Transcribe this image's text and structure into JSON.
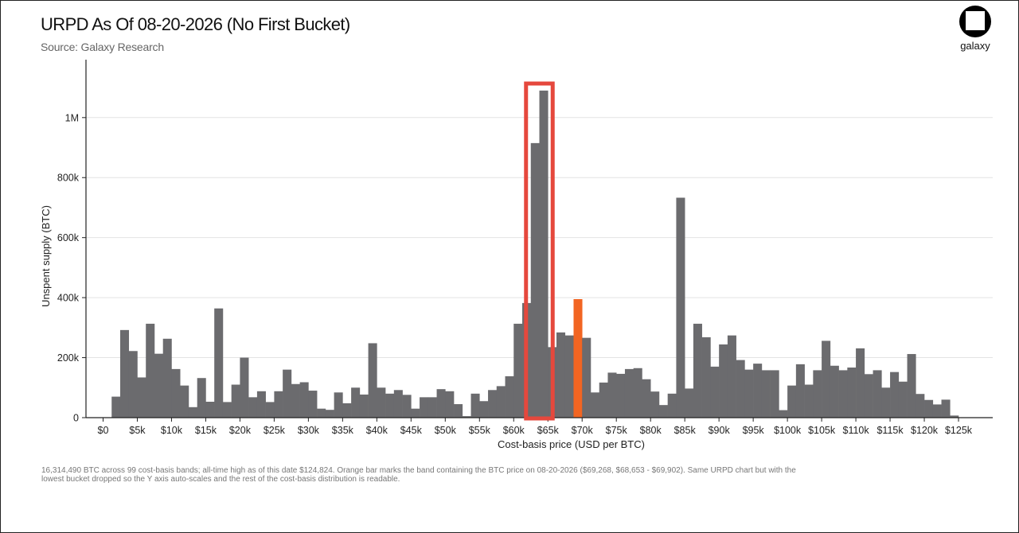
{
  "header": {
    "title": "URPD As Of 08-20-2026 (No First Bucket)",
    "subtitle": "Source: Galaxy Research"
  },
  "logo": {
    "text": "galaxy"
  },
  "footnote": "16,314,490 BTC across 99 cost-basis bands; all-time high as of this date $124,824. Orange bar marks the band containing the BTC price on 08-20-2026 ($69,268, $68,653 - $69,902). Same URPD chart but with the lowest bucket dropped so the Y axis auto-scales and the rest of the cost-basis distribution is readable.",
  "colors": {
    "bar": "#6b6b6e",
    "highlight_bar": "#f26522",
    "highlight_box": "#e5483d",
    "grid": "#e3e3e3",
    "axis": "#222222"
  },
  "chart_data": {
    "type": "bar",
    "xlabel": "Cost-basis price (USD per BTC)",
    "ylabel": "Unspent supply (BTC)",
    "xlim": [
      -2500,
      130000
    ],
    "ylim": [
      0,
      1140000
    ],
    "bucket_width": 1250,
    "x_ticks": [
      0,
      5000,
      10000,
      15000,
      20000,
      25000,
      30000,
      35000,
      40000,
      45000,
      50000,
      55000,
      60000,
      65000,
      70000,
      75000,
      80000,
      85000,
      90000,
      95000,
      100000,
      105000,
      110000,
      115000,
      120000,
      125000
    ],
    "x_tick_labels": [
      "$0",
      "$5k",
      "$10k",
      "$15k",
      "$20k",
      "$25k",
      "$30k",
      "$35k",
      "$40k",
      "$45k",
      "$50k",
      "$55k",
      "$60k",
      "$65k",
      "$70k",
      "$75k",
      "$80k",
      "$85k",
      "$90k",
      "$95k",
      "$100k",
      "$105k",
      "$110k",
      "$115k",
      "$120k",
      "$125k"
    ],
    "y_ticks": [
      0,
      200000,
      400000,
      600000,
      800000,
      1000000
    ],
    "y_tick_labels": [
      "0",
      "200k",
      "400k",
      "600k",
      "800k",
      "1M"
    ],
    "x_start": 1250,
    "values": [
      70000,
      292000,
      222000,
      134000,
      313000,
      213000,
      263000,
      162000,
      107000,
      35000,
      132000,
      53000,
      364000,
      52000,
      110000,
      200000,
      68000,
      88000,
      52000,
      88000,
      160000,
      112000,
      118000,
      90000,
      30000,
      26000,
      84000,
      48000,
      100000,
      77000,
      248000,
      100000,
      80000,
      92000,
      76000,
      30000,
      68000,
      68000,
      95000,
      88000,
      45000,
      5000,
      80000,
      55000,
      92000,
      105000,
      138000,
      313000,
      382000,
      915000,
      1090000,
      235000,
      284000,
      274000,
      395000,
      266000,
      84000,
      117000,
      150000,
      146000,
      162000,
      165000,
      128000,
      87000,
      42000,
      80000,
      733000,
      97000,
      313000,
      268000,
      170000,
      244000,
      274000,
      192000,
      160000,
      180000,
      158000,
      158000,
      25000,
      107000,
      178000,
      110000,
      158000,
      256000,
      173000,
      158000,
      167000,
      231000,
      145000,
      158000,
      100000,
      152000,
      120000,
      212000,
      79000,
      59000,
      44000,
      60000,
      7000
    ],
    "highlight_index": 54,
    "highlight_box_indices": [
      49,
      50
    ]
  }
}
